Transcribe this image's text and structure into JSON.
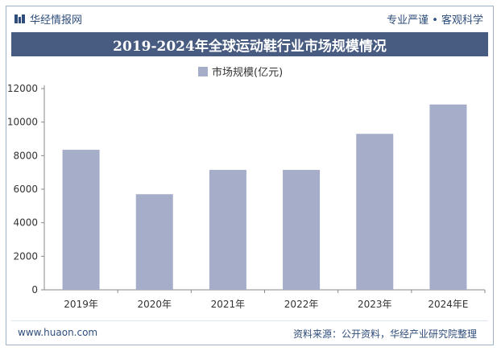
{
  "header": {
    "brand_name": "华经情报网",
    "slogan": "专业严谨 • 客观科学"
  },
  "footer": {
    "website": "www.huaon.com",
    "source": "资料来源：公开资料，华经产业研究院整理"
  },
  "colors": {
    "bar": "#a5adc9",
    "title_bg": "#485b80",
    "brand_text": "#2e4d7b",
    "axis": "#333333"
  },
  "chart_data": {
    "type": "bar",
    "title": "2019-2024年全球运动鞋行业市场规模情况",
    "xlabel": "",
    "ylabel": "",
    "categories": [
      "2019年",
      "2020年",
      "2021年",
      "2022年",
      "2023年",
      "2024年E"
    ],
    "series": [
      {
        "name": "市场规模(亿元)",
        "values": [
          8350,
          5700,
          7150,
          7150,
          9300,
          11050
        ]
      }
    ],
    "ylim": [
      0,
      12000
    ],
    "yticks": [
      "0",
      "2000",
      "4000",
      "6000",
      "8000",
      "10000",
      "12000"
    ],
    "legend_position": "top-center",
    "grid": false
  }
}
